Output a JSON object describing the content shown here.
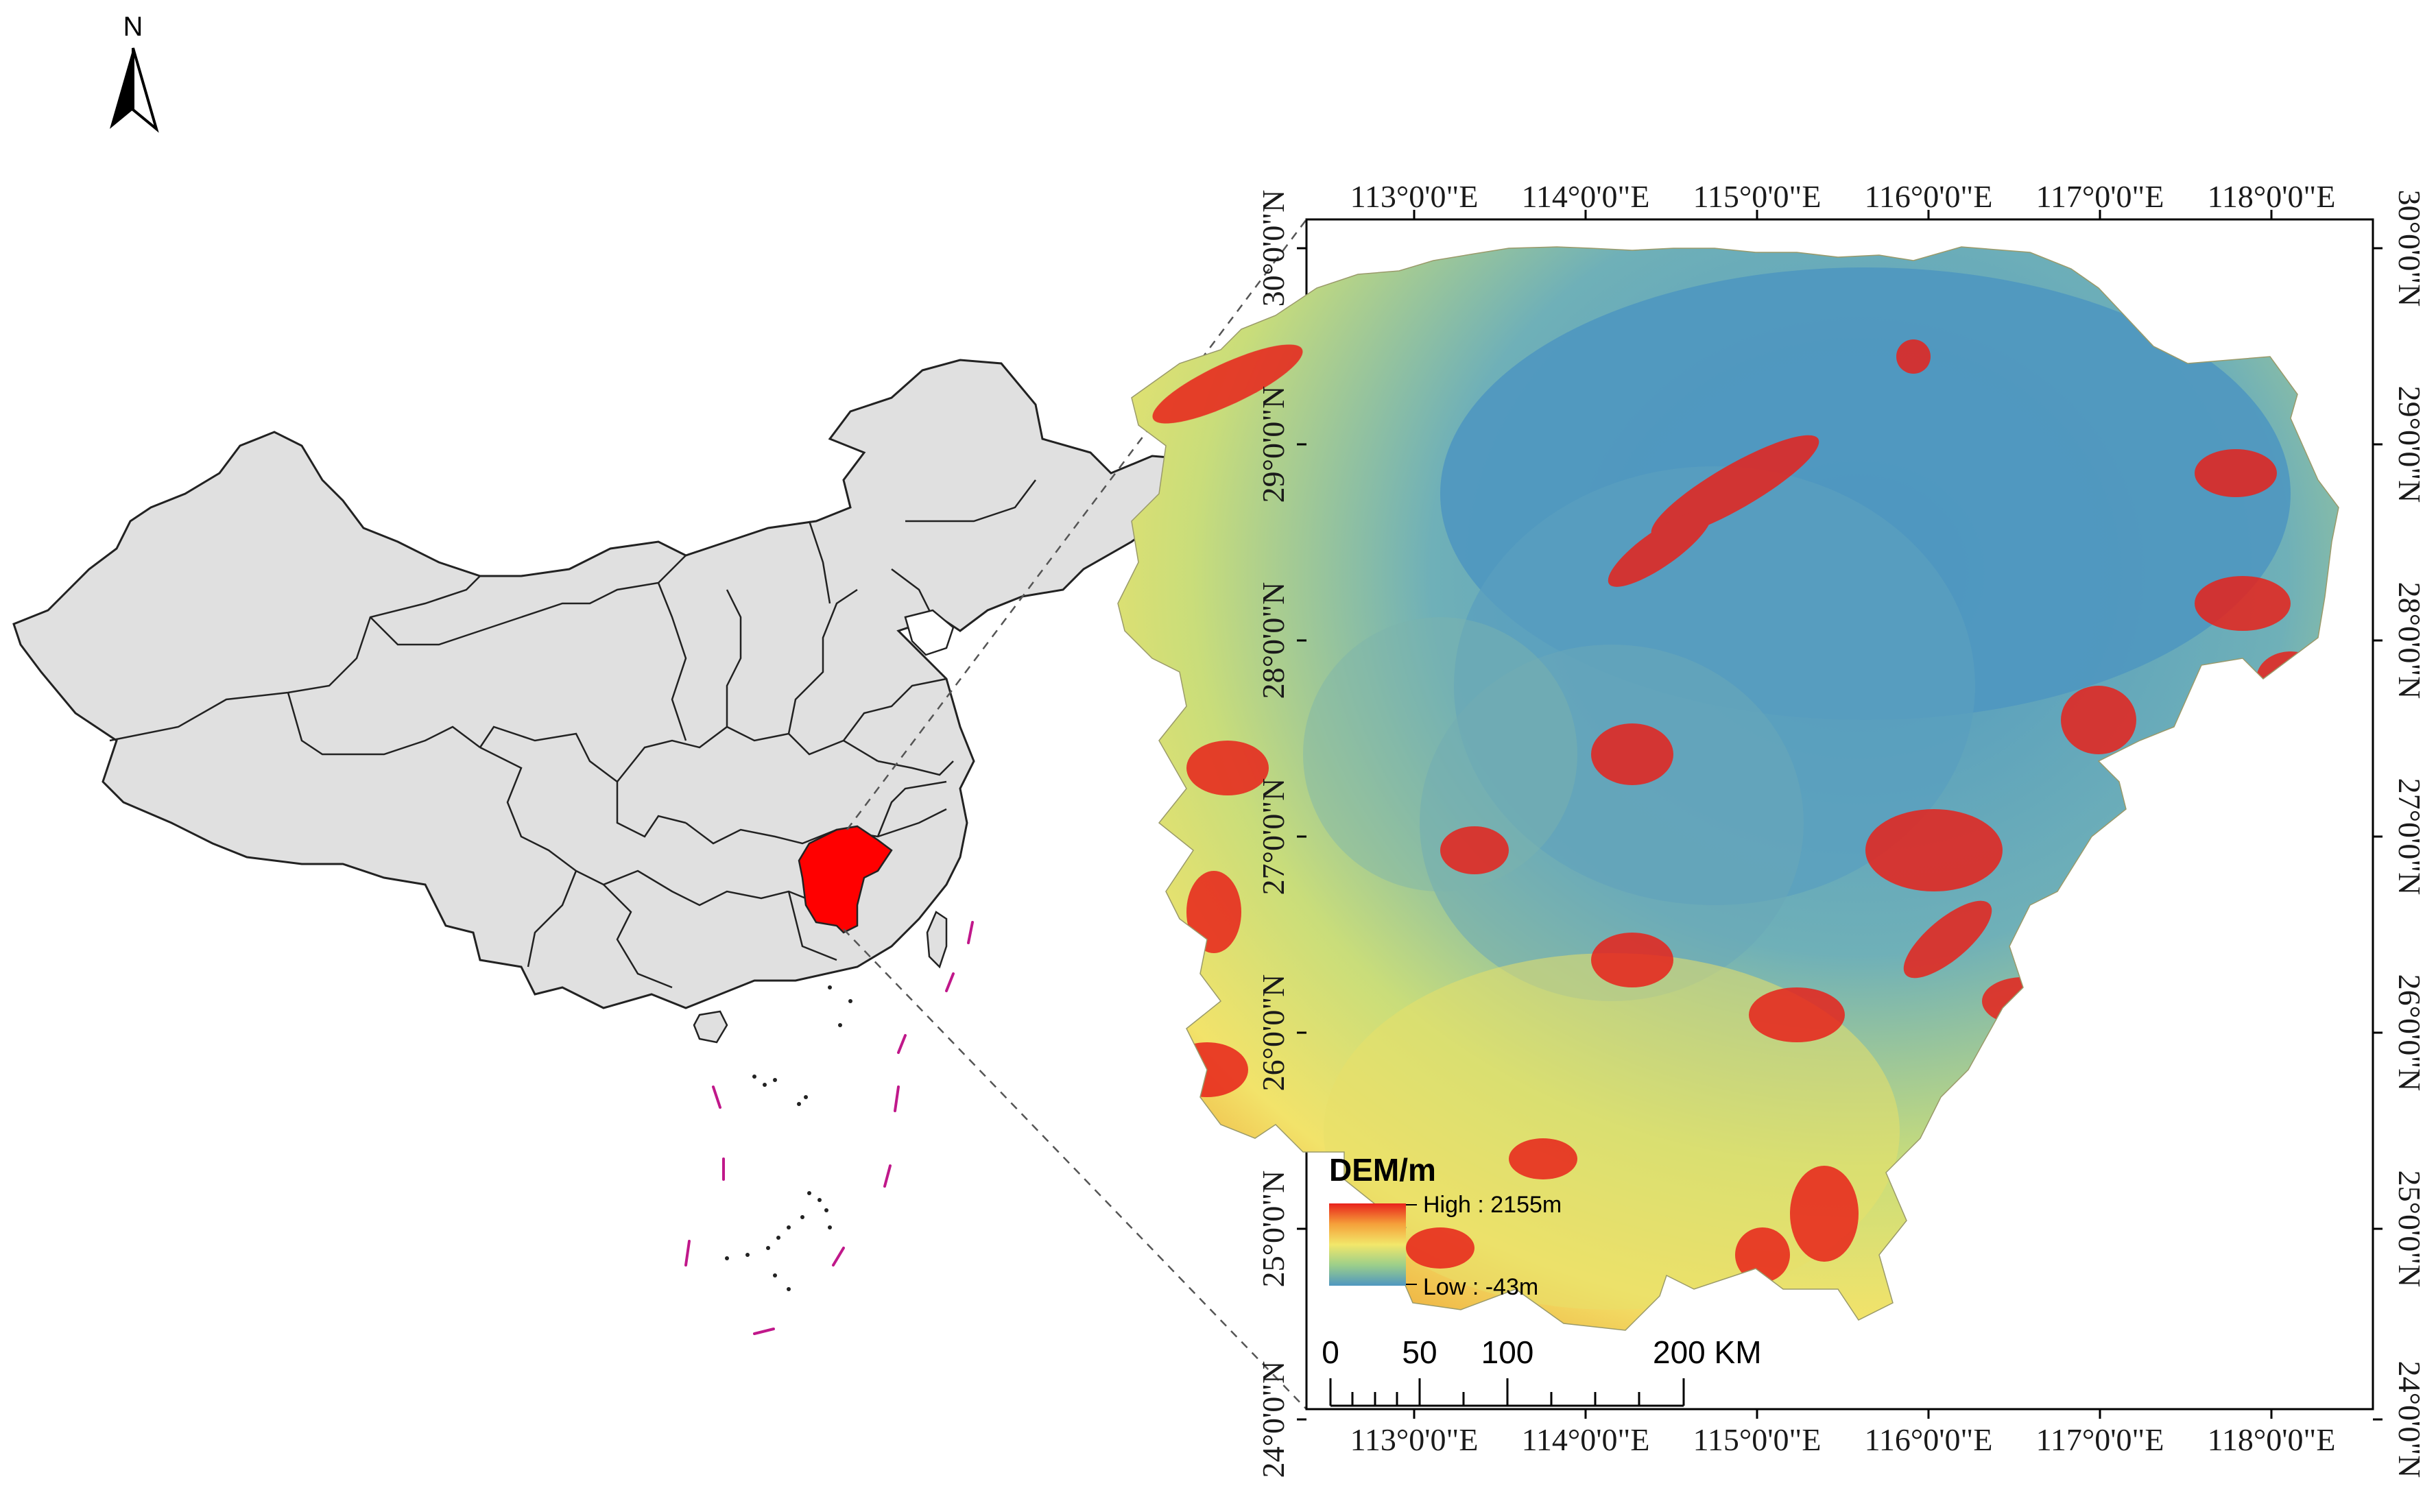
{
  "north_arrow": {
    "label": "N"
  },
  "overview_map": {
    "highlight_color": "#ff0000",
    "land_color": "#e0e0e0",
    "islands_line_color": "#c0188a"
  },
  "dem_map": {
    "top_labels": [
      "113°0'0\"E",
      "114°0'0\"E",
      "115°0'0\"E",
      "116°0'0\"E",
      "117°0'0\"E",
      "118°0'0\"E"
    ],
    "bottom_labels": [
      "113°0'0\"E",
      "114°0'0\"E",
      "115°0'0\"E",
      "116°0'0\"E",
      "117°0'0\"E",
      "118°0'0\"E"
    ],
    "left_labels": [
      "30°0'0\"N",
      "29°0'0\"N",
      "28°0'0\"N",
      "27°0'0\"N",
      "26°0'0\"N",
      "25°0'0\"N",
      "24°0'0\"N"
    ],
    "right_labels": [
      "30°0'0\"N",
      "29°0'0\"N",
      "28°0'0\"N",
      "27°0'0\"N",
      "26°0'0\"N",
      "25°0'0\"N",
      "24°0'0\"N"
    ],
    "ramp_colors": [
      "#e8221b",
      "#f5a03a",
      "#f2e76a",
      "#9ccf8a",
      "#4f97c0"
    ]
  },
  "legend": {
    "title": "DEM/m",
    "high": "High : 2155m",
    "low": "Low : -43m"
  },
  "scale_bar": {
    "ticks": [
      "0",
      "50",
      "100",
      "200 KM"
    ]
  }
}
